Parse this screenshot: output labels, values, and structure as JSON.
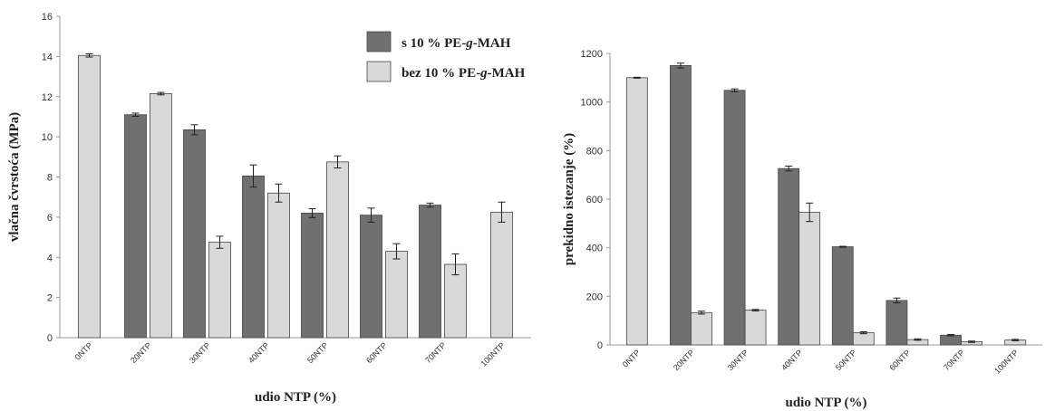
{
  "chart_data": [
    {
      "type": "bar",
      "categories": [
        "0NTP",
        "20NTP",
        "30NTP",
        "40NTP",
        "50NTP",
        "60NTP",
        "70NTP",
        "100NTP"
      ],
      "series": [
        {
          "name": "s 10 % PE-g-MAH",
          "values": [
            null,
            11.1,
            10.35,
            8.05,
            6.2,
            6.1,
            6.6,
            null
          ],
          "errors": [
            null,
            0.08,
            0.25,
            0.55,
            0.22,
            0.35,
            0.1,
            null
          ],
          "color": "#707070"
        },
        {
          "name": "bez 10 % PE-g-MAH",
          "values": [
            14.05,
            12.15,
            4.75,
            7.2,
            8.75,
            4.3,
            3.65,
            6.25
          ],
          "errors": [
            0.08,
            0.06,
            0.3,
            0.45,
            0.3,
            0.38,
            0.52,
            0.5
          ],
          "color": "#d9d9d9"
        }
      ],
      "xlabel": "udio NTP (%)",
      "ylabel": "vlačna čvrstoća (MPa)",
      "ylim": [
        0,
        16
      ],
      "yticks": [
        0,
        2,
        4,
        6,
        8,
        10,
        12,
        14,
        16
      ],
      "grid": false,
      "legend": {
        "position": "top-right",
        "entries": [
          "s 10 % PE-g-MAH",
          "bez 10 % PE-g-MAH"
        ]
      }
    },
    {
      "type": "bar",
      "categories": [
        "0NTP",
        "20NTP",
        "30NTP",
        "40NTP",
        "50NTP",
        "60NTP",
        "70NTP",
        "100NTP"
      ],
      "series": [
        {
          "name": "s 10 % PE-g-MAH",
          "values": [
            null,
            1150,
            1048,
            726,
            404,
            183,
            40,
            null
          ],
          "errors": [
            null,
            10,
            6,
            10,
            2,
            10,
            3,
            null
          ],
          "color": "#707070"
        },
        {
          "name": "bez 10 % PE-g-MAH",
          "values": [
            1100,
            133,
            143,
            546,
            50,
            22,
            13,
            20
          ],
          "errors": [
            2,
            6,
            3,
            38,
            4,
            3,
            3,
            3
          ],
          "color": "#d9d9d9"
        }
      ],
      "xlabel": "udio NTP (%)",
      "ylabel": "prekidno istezanje (%)",
      "ylim": [
        0,
        1200
      ],
      "yticks": [
        0,
        200,
        400,
        600,
        800,
        1000,
        1200
      ],
      "grid": false
    }
  ]
}
